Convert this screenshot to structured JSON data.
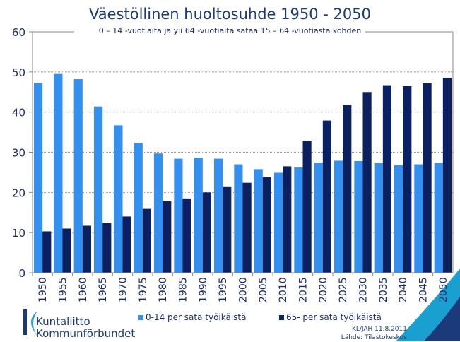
{
  "chart_data": {
    "type": "bar",
    "title": "Väestöllinen huoltosuhde 1950 - 2050",
    "subtitle": "0 – 14 -vuotiaita ja yli 64 -vuotiaita sataa 15 – 64 -vuotiasta kohden",
    "categories": [
      "1950",
      "1955",
      "1960",
      "1965",
      "1970",
      "1975",
      "1980",
      "1985",
      "1990",
      "1995",
      "2000",
      "2005",
      "2010",
      "2015",
      "2020",
      "2025",
      "2030",
      "2035",
      "2040",
      "2045",
      "2050"
    ],
    "series": [
      {
        "name": "0-14 per sata työikäistä",
        "color": "#3390f0",
        "values": [
          47.3,
          49.5,
          48.2,
          41.4,
          36.7,
          32.3,
          29.7,
          28.4,
          28.6,
          28.4,
          27.0,
          25.8,
          24.9,
          26.2,
          27.4,
          27.9,
          27.8,
          27.3,
          26.8,
          27.0,
          27.3
        ]
      },
      {
        "name": "65- per sata työikäistä",
        "color": "#0a2060",
        "values": [
          10.3,
          11.0,
          11.7,
          12.4,
          14.0,
          15.9,
          17.8,
          18.5,
          20.0,
          21.5,
          22.4,
          23.8,
          26.5,
          32.9,
          37.9,
          41.8,
          45.0,
          46.7,
          46.5,
          47.2,
          48.5
        ]
      }
    ],
    "ylim": [
      0,
      60
    ],
    "yticks": [
      0,
      10,
      20,
      30,
      40,
      50,
      60
    ],
    "grid": true,
    "legend": "bottom"
  },
  "logo": {
    "line1": "Kuntaliitto",
    "line2": "Kommunförbundet"
  },
  "credit": {
    "line1": "KL/JAH 11.8.2011",
    "line2": "Lähde: Tilastokeskus"
  }
}
